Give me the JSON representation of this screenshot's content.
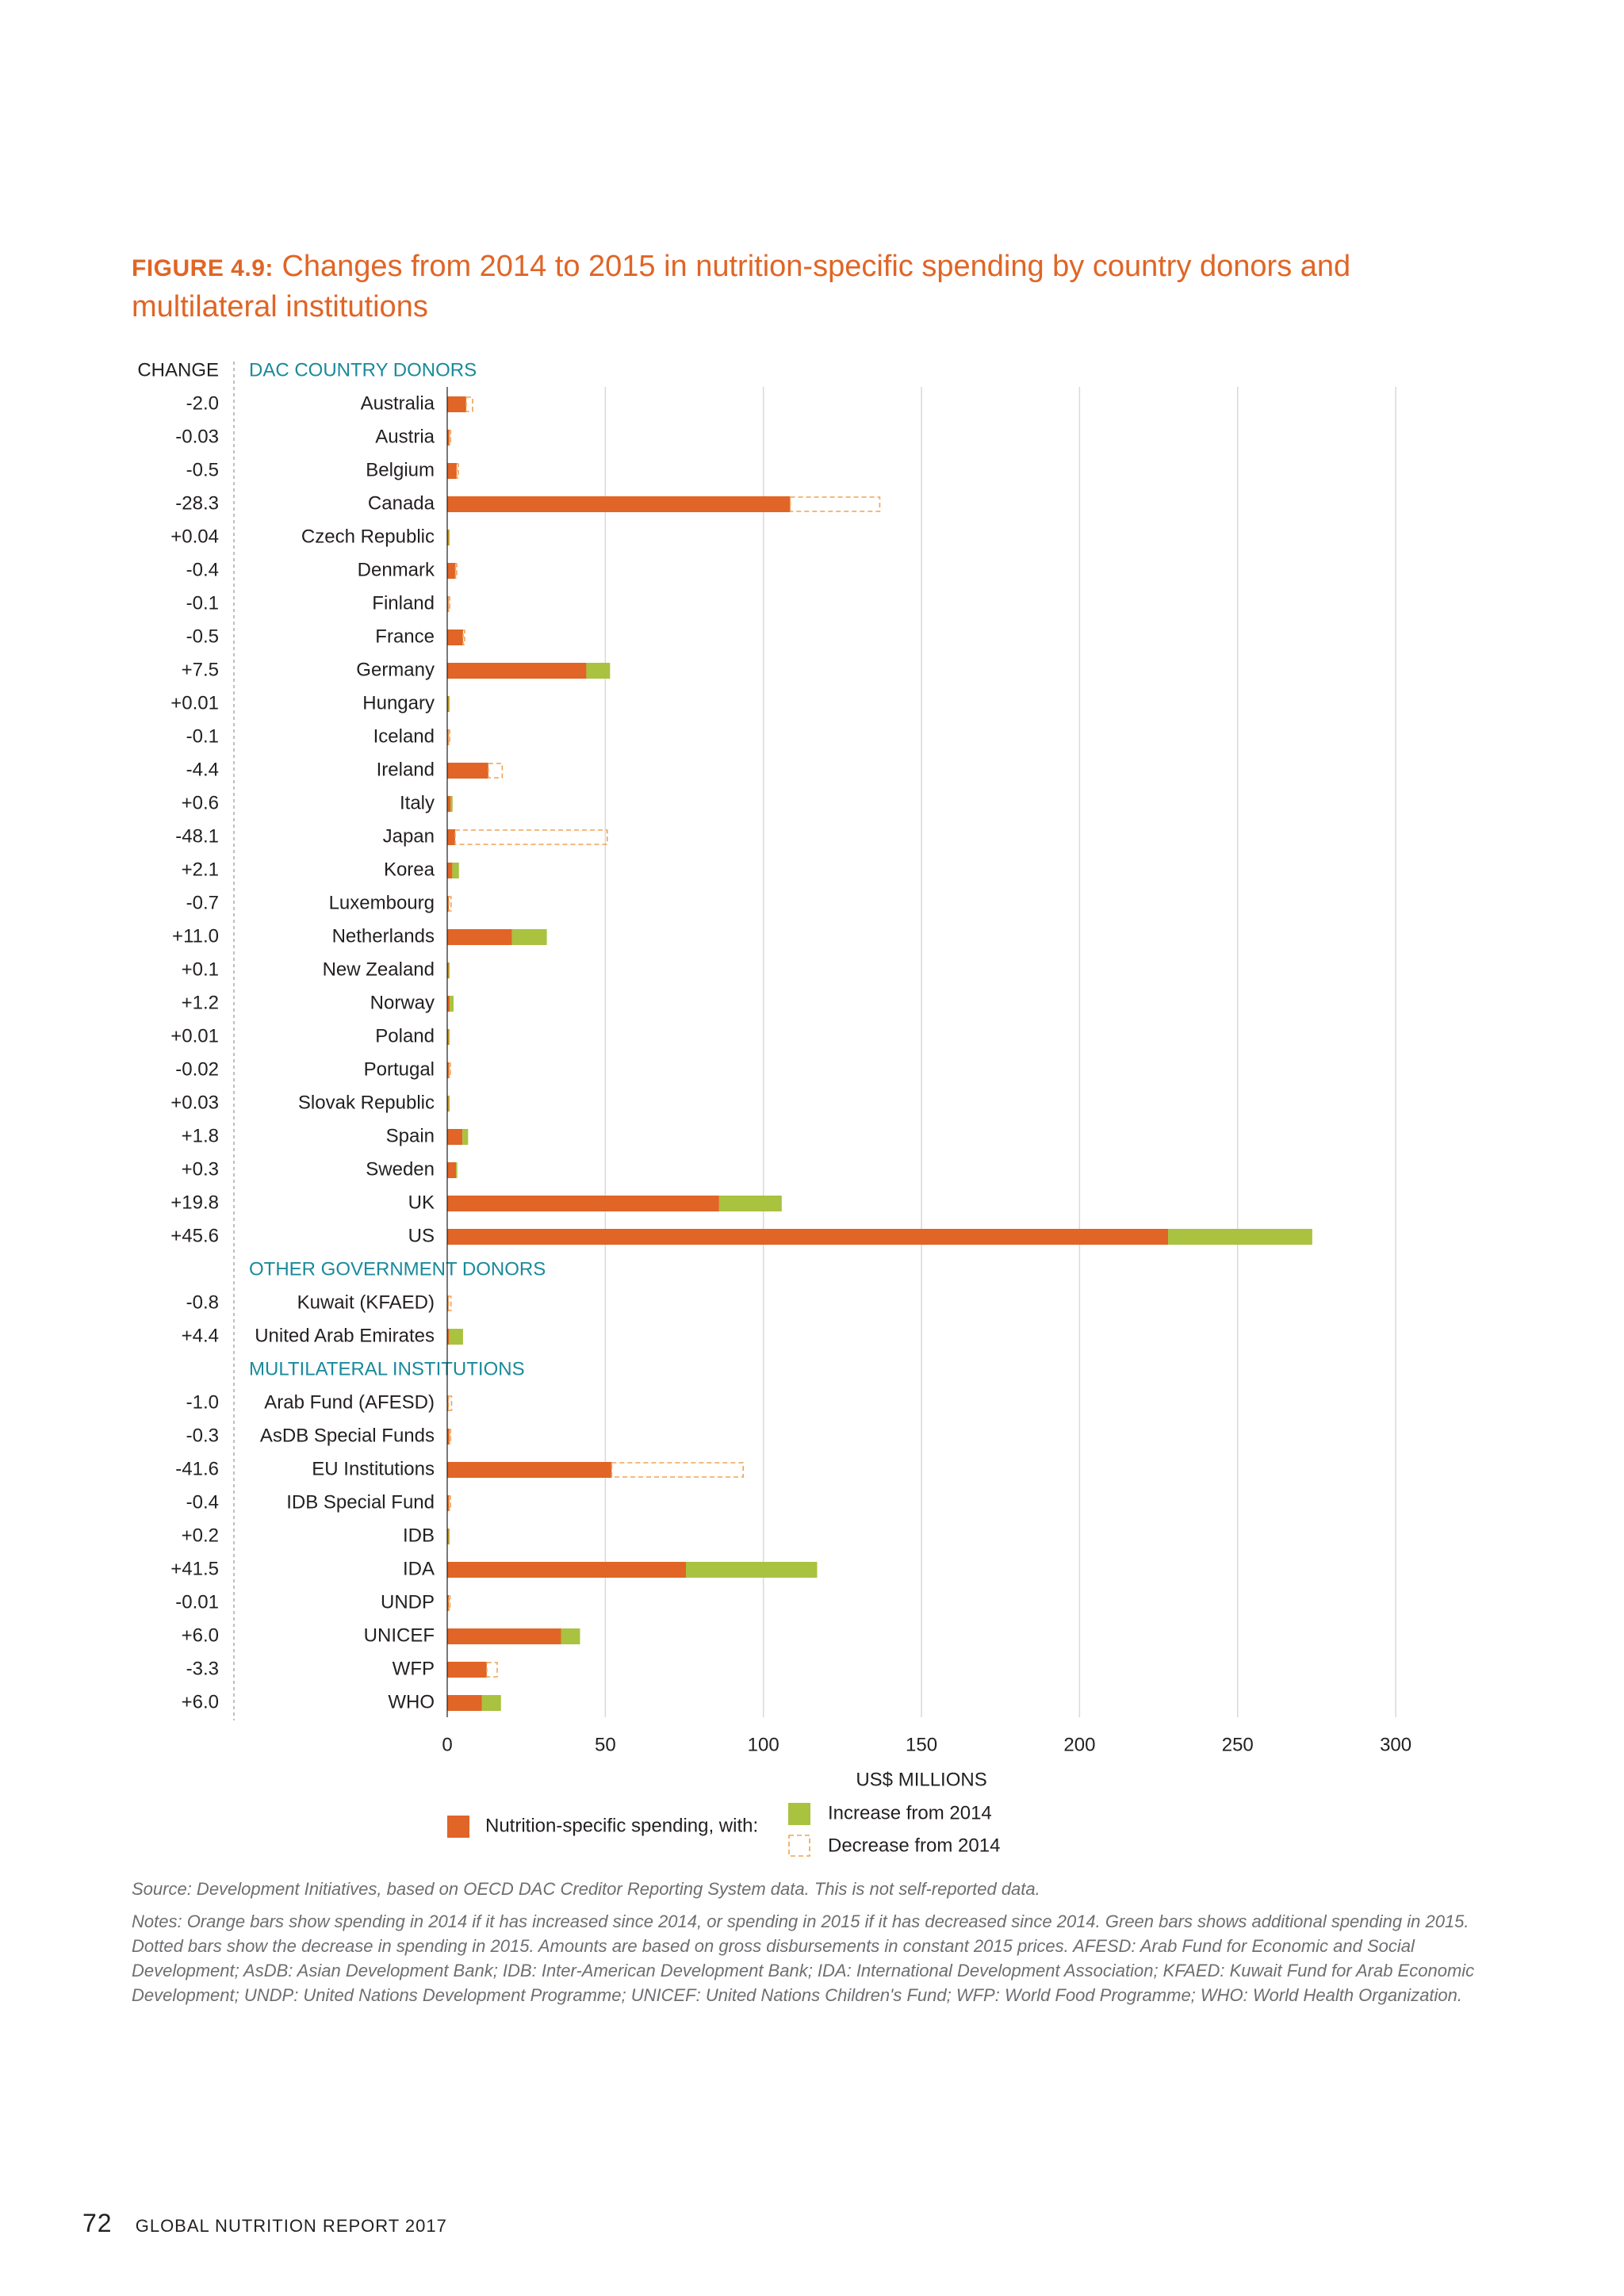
{
  "figure": {
    "label": "FIGURE 4.9:",
    "title": "Changes from 2014 to 2015 in nutrition-specific spending by country donors and multilateral institutions"
  },
  "chart_data": {
    "type": "bar",
    "orientation": "horizontal",
    "stacked": true,
    "change_column_header": "CHANGE",
    "xlabel": "US$ MILLIONS",
    "xlim": [
      0,
      300
    ],
    "xticks": [
      0,
      50,
      100,
      150,
      200,
      250,
      300
    ],
    "grid": true,
    "colors": {
      "base": "#e06526",
      "increase": "#a9c23f",
      "decrease": "#f0a253"
    },
    "legend": {
      "placement": "bottom",
      "base_label": "Nutrition-specific spending, with:",
      "increase_label": "Increase from 2014",
      "decrease_label": "Decrease from 2014"
    },
    "groups": [
      {
        "name": "DAC COUNTRY DONORS",
        "rows": [
          {
            "name": "Australia",
            "change": "-2.0",
            "base": 6.0,
            "delta": 2.0
          },
          {
            "name": "Austria",
            "change": "-0.03",
            "base": 0.7,
            "delta": 0.03
          },
          {
            "name": "Belgium",
            "change": "-0.5",
            "base": 3.0,
            "delta": 0.5
          },
          {
            "name": "Canada",
            "change": "-28.3",
            "base": 108.5,
            "delta": 28.3
          },
          {
            "name": "Czech Republic",
            "change": "+0.04",
            "base": 0.3,
            "delta": 0.04
          },
          {
            "name": "Denmark",
            "change": "-0.4",
            "base": 2.6,
            "delta": 0.4
          },
          {
            "name": "Finland",
            "change": "-0.1",
            "base": 0.4,
            "delta": 0.1
          },
          {
            "name": "France",
            "change": "-0.5",
            "base": 5.0,
            "delta": 0.5
          },
          {
            "name": "Germany",
            "change": "+7.5",
            "base": 44.0,
            "delta": 7.5
          },
          {
            "name": "Hungary",
            "change": "+0.01",
            "base": 0.2,
            "delta": 0.01
          },
          {
            "name": "Iceland",
            "change": "-0.1",
            "base": 0.4,
            "delta": 0.1
          },
          {
            "name": "Ireland",
            "change": "-4.4",
            "base": 13.0,
            "delta": 4.4
          },
          {
            "name": "Italy",
            "change": "+0.6",
            "base": 1.1,
            "delta": 0.6
          },
          {
            "name": "Japan",
            "change": "-48.1",
            "base": 2.5,
            "delta": 48.1
          },
          {
            "name": "Korea",
            "change": "+2.1",
            "base": 1.6,
            "delta": 2.1
          },
          {
            "name": "Luxembourg",
            "change": "-0.7",
            "base": 0.5,
            "delta": 0.7
          },
          {
            "name": "Netherlands",
            "change": "+11.0",
            "base": 20.5,
            "delta": 11.0
          },
          {
            "name": "New Zealand",
            "change": "+0.1",
            "base": 0.3,
            "delta": 0.1
          },
          {
            "name": "Norway",
            "change": "+1.2",
            "base": 0.8,
            "delta": 1.2
          },
          {
            "name": "Poland",
            "change": "+0.01",
            "base": 0.2,
            "delta": 0.01
          },
          {
            "name": "Portugal",
            "change": "-0.02",
            "base": 0.6,
            "delta": 0.02
          },
          {
            "name": "Slovak Republic",
            "change": "+0.03",
            "base": 0.4,
            "delta": 0.03
          },
          {
            "name": "Spain",
            "change": "+1.8",
            "base": 4.8,
            "delta": 1.8
          },
          {
            "name": "Sweden",
            "change": "+0.3",
            "base": 2.8,
            "delta": 0.3
          },
          {
            "name": "UK",
            "change": "+19.8",
            "base": 86.0,
            "delta": 19.8
          },
          {
            "name": "US",
            "change": "+45.6",
            "base": 228.0,
            "delta": 45.6
          }
        ]
      },
      {
        "name": "OTHER GOVERNMENT DONORS",
        "rows": [
          {
            "name": "Kuwait (KFAED)",
            "change": "-0.8",
            "base": 0.1,
            "delta": 0.8
          },
          {
            "name": "United Arab Emirates",
            "change": "+4.4",
            "base": 0.6,
            "delta": 4.4
          }
        ]
      },
      {
        "name": "MULTILATERAL INSTITUTIONS",
        "rows": [
          {
            "name": "Arab Fund (AFESD)",
            "change": "-1.0",
            "base": 0.2,
            "delta": 1.0
          },
          {
            "name": "AsDB Special Funds",
            "change": "-0.3",
            "base": 0.7,
            "delta": 0.3
          },
          {
            "name": "EU Institutions",
            "change": "-41.6",
            "base": 52.0,
            "delta": 41.6
          },
          {
            "name": "IDB Special Fund",
            "change": "-0.4",
            "base": 0.6,
            "delta": 0.4
          },
          {
            "name": "IDB",
            "change": "+0.2",
            "base": 0.2,
            "delta": 0.2
          },
          {
            "name": "IDA",
            "change": "+41.5",
            "base": 75.5,
            "delta": 41.5
          },
          {
            "name": "UNDP",
            "change": "-0.01",
            "base": 0.5,
            "delta": 0.01
          },
          {
            "name": "UNICEF",
            "change": "+6.0",
            "base": 36.0,
            "delta": 6.0
          },
          {
            "name": "WFP",
            "change": "-3.3",
            "base": 12.5,
            "delta": 3.3
          },
          {
            "name": "WHO",
            "change": "+6.0",
            "base": 11.0,
            "delta": 6.0
          }
        ]
      }
    ]
  },
  "source": "Source: Development Initiatives, based on OECD DAC Creditor Reporting System data. This is not self-reported data.",
  "notes": "Notes: Orange bars show spending in 2014 if it has increased since 2014, or spending in 2015 if it has decreased since 2014. Green bars shows additional spending in 2015. Dotted bars show the decrease in spending in 2015. Amounts are based on gross disbursements in constant 2015 prices. AFESD: Arab Fund for Economic and Social Development; AsDB: Asian Development Bank; IDB: Inter-American Development Bank; IDA: International Development Association; KFAED: Kuwait Fund for Arab Economic Development; UNDP: United Nations Development Programme; UNICEF: United Nations Children's Fund; WFP: World Food Programme; WHO: World Health Organization.",
  "footer": {
    "page_number": "72",
    "report_name": "GLOBAL NUTRITION REPORT 2017"
  }
}
